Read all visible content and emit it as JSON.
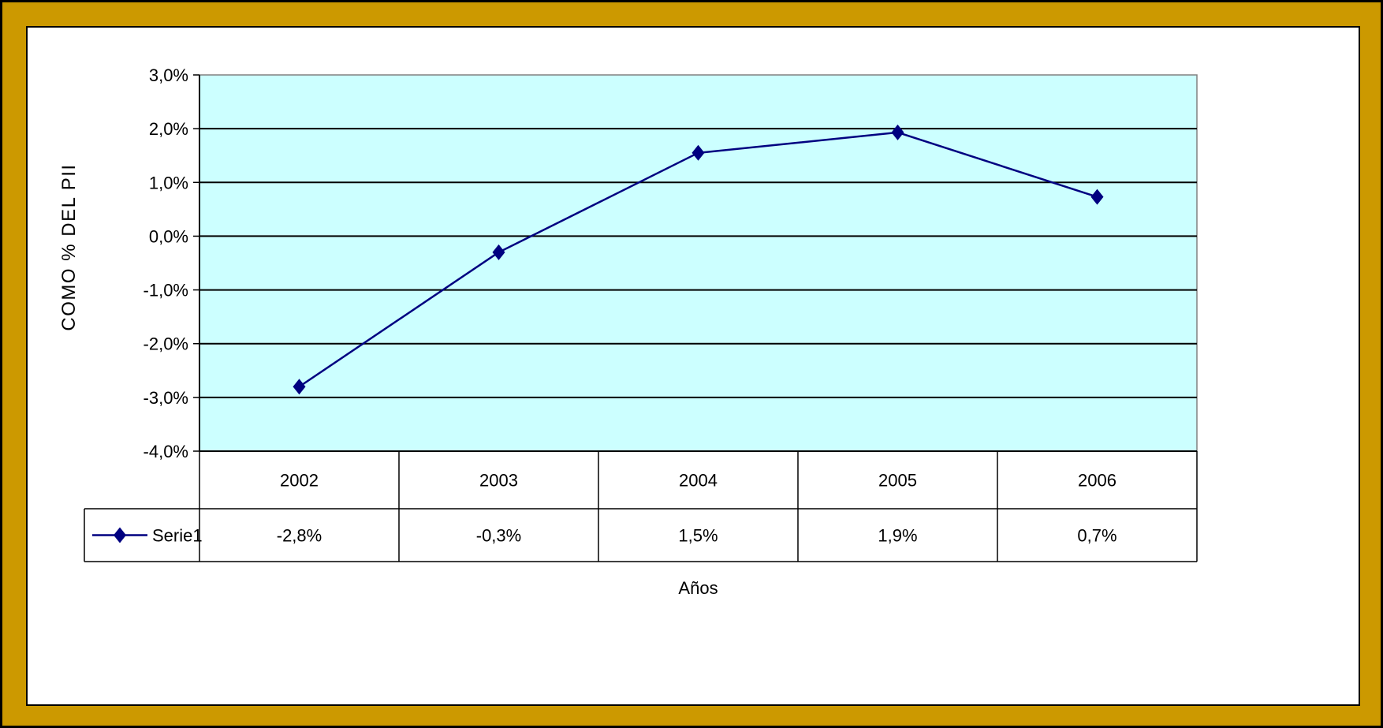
{
  "chart_data": {
    "type": "line",
    "categories": [
      "2002",
      "2003",
      "2004",
      "2005",
      "2006"
    ],
    "series": [
      {
        "name": "Serie1",
        "values": [
          -2.8,
          -0.3,
          1.55,
          1.93,
          0.73
        ],
        "labels": [
          "-2,8%",
          "-0,3%",
          "1,5%",
          "1,9%",
          "0,7%"
        ]
      }
    ],
    "ylabel": "COMO % DEL PII",
    "xlabel": "Años",
    "ylim": [
      -4.0,
      3.0
    ],
    "yticks": [
      3.0,
      2.0,
      1.0,
      0.0,
      -1.0,
      -2.0,
      -3.0,
      -4.0
    ],
    "ytick_labels": [
      "3,0%",
      "2,0%",
      "1,0%",
      "0,0%",
      "-1,0%",
      "-2,0%",
      "-3,0%",
      "-4,0%"
    ],
    "grid": true,
    "legend": "data-table",
    "colors": {
      "frame": "#cc9900",
      "plot_background": "#ccffff",
      "series_line": "#000080",
      "gridline": "#000000"
    }
  }
}
